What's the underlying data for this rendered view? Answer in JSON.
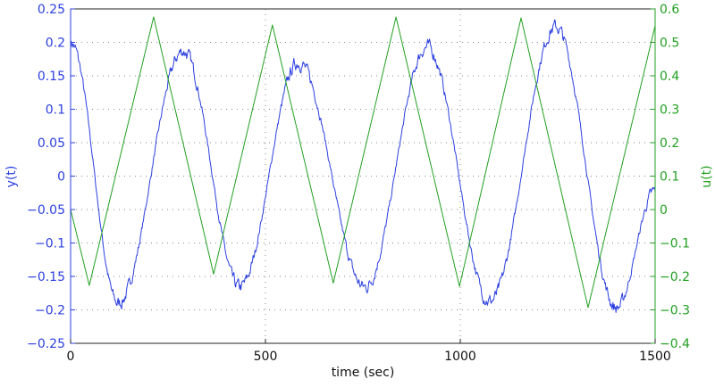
{
  "chart_data": {
    "type": "line",
    "title": "",
    "xlabel": "time (sec)",
    "ylabel_left": "y(t)",
    "ylabel_right": "u(t)",
    "xlim": [
      0,
      1500
    ],
    "ylim_left": [
      -0.25,
      0.25
    ],
    "ylim_right": [
      -0.4,
      0.6
    ],
    "x_ticks": [
      "0",
      "500",
      "1000",
      "1500"
    ],
    "x_tick_values": [
      0,
      500,
      1000,
      1500
    ],
    "y_left_ticks": [
      "0.25",
      "0.2",
      "0.15",
      "0.1",
      "0.05",
      "0",
      "−0.05",
      "−0.1",
      "−0.15",
      "−0.2",
      "−0.25"
    ],
    "y_left_tick_values": [
      0.25,
      0.2,
      0.15,
      0.1,
      0.05,
      0,
      -0.05,
      -0.1,
      -0.15,
      -0.2,
      -0.25
    ],
    "y_right_ticks": [
      "0.6",
      "0.5",
      "0.4",
      "0.3",
      "0.2",
      "0.1",
      "0",
      "−0.1",
      "−0.2",
      "−0.3",
      "−0.4"
    ],
    "y_right_tick_values": [
      0.6,
      0.5,
      0.4,
      0.3,
      0.2,
      0.1,
      0,
      -0.1,
      -0.2,
      -0.3,
      -0.4
    ],
    "grid": true,
    "series": [
      {
        "name": "y(t)",
        "axis": "left",
        "color": "#2b3fe0",
        "shape": "noisy-sinusoid",
        "x": [
          0,
          122,
          289,
          434,
          585,
          755,
          915,
          1076,
          1245,
          1401,
          1500
        ],
        "values": [
          0.2,
          -0.19,
          0.187,
          -0.166,
          0.17,
          -0.166,
          0.193,
          -0.187,
          0.223,
          -0.197,
          -0.023
        ]
      },
      {
        "name": "u(t)",
        "axis": "right",
        "color": "#22a022",
        "shape": "triangle",
        "x": [
          0,
          48,
          213,
          367,
          518,
          674,
          835,
          998,
          1156,
          1328,
          1500
        ],
        "values": [
          0.0,
          -0.227,
          0.576,
          -0.193,
          0.552,
          -0.22,
          0.576,
          -0.23,
          0.573,
          -0.293,
          0.55
        ]
      }
    ]
  }
}
